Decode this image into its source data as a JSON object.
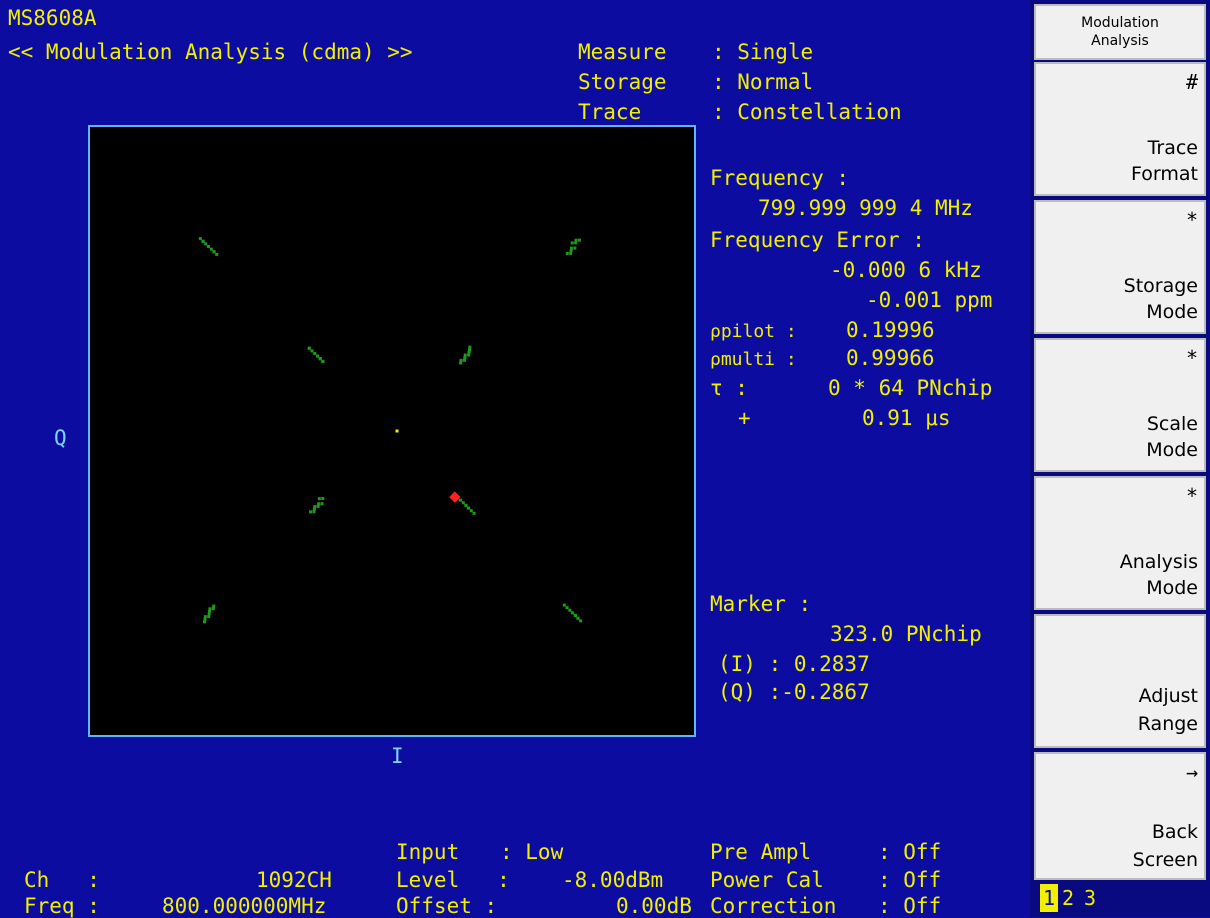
{
  "header": {
    "model": "MS8608A",
    "title": "<< Modulation Analysis (cdma) >>"
  },
  "settings": [
    {
      "label": "Measure",
      "value": ": Single"
    },
    {
      "label": "Storage",
      "value": ": Normal"
    },
    {
      "label": "Trace",
      "value": ": Constellation"
    }
  ],
  "results": {
    "frequency_label": "Frequency :",
    "frequency_value": "799.999 999 4 MHz",
    "freq_error_label": "Frequency Error :",
    "freq_error_khz": "-0.000 6 kHz",
    "freq_error_ppm": "-0.001 ppm",
    "rho_pilot_label": "ρpilot :",
    "rho_pilot_value": "0.19996",
    "rho_multi_label": "ρmulti :",
    "rho_multi_value": "0.99966",
    "tau_label": "τ :",
    "tau_value": "0 * 64 PNchip",
    "tau_plus": "+",
    "tau_us": "0.91 μs"
  },
  "marker": {
    "label": "Marker :",
    "position": "323.0 PNchip",
    "i_value": "(I) : 0.2837",
    "q_value": "(Q) :-0.2867"
  },
  "plot": {
    "y_label": "Q",
    "x_label": "I"
  },
  "chart_data": {
    "type": "scatter",
    "title": "",
    "xlabel": "I",
    "ylabel": "Q",
    "constellation_points": [
      {
        "i": -0.71,
        "q": 0.71
      },
      {
        "i": 0.71,
        "q": 0.71
      },
      {
        "i": -0.71,
        "q": -0.71
      },
      {
        "i": 0.71,
        "q": -0.71
      },
      {
        "i": -0.29,
        "q": 0.29
      },
      {
        "i": 0.29,
        "q": 0.29
      },
      {
        "i": -0.29,
        "q": -0.29
      },
      {
        "i": 0.29,
        "q": -0.29
      }
    ],
    "marker_point": {
      "i": 0.2837,
      "q": -0.2867
    },
    "center_point": {
      "i": 0.0,
      "q": 0.0
    },
    "xlim": [
      -1,
      1
    ],
    "ylim": [
      -1,
      1
    ]
  },
  "footer": {
    "ch_label": "Ch   :",
    "ch_value": "1092CH",
    "freq_label": "Freq :",
    "freq_value": "800.000000MHz",
    "input_label": "Input",
    "input_value": ": Low",
    "level_label": "Level   :",
    "level_value": "-8.00dBm",
    "offset_label": "Offset :",
    "offset_value": "0.00dB",
    "preampl_label": "Pre Ampl",
    "preampl_value": ": Off",
    "powercal_label": "Power Cal",
    "powercal_value": ": Off",
    "correction_label": "Correction",
    "correction_value": ": Off"
  },
  "softkeys": {
    "header_line1": "Modulation",
    "header_line2": "Analysis",
    "keys": [
      {
        "mark": "#",
        "line1": "Trace",
        "line2": "Format"
      },
      {
        "mark": "*",
        "line1": "Storage",
        "line2": "Mode"
      },
      {
        "mark": "*",
        "line1": "Scale",
        "line2": "Mode"
      },
      {
        "mark": "*",
        "line1": "Analysis",
        "line2": "Mode"
      },
      {
        "mark": "",
        "line1": "Adjust",
        "line2": "Range"
      },
      {
        "mark": "→",
        "line1": "Back",
        "line2": "Screen"
      }
    ],
    "pages": [
      "1",
      "2",
      "3"
    ]
  },
  "colors": {
    "background": "#0c0ca0",
    "text": "#f0f000",
    "plot_border": "#5fb6ff",
    "symbol": "#1f9a1f",
    "marker": "#ff2020"
  }
}
